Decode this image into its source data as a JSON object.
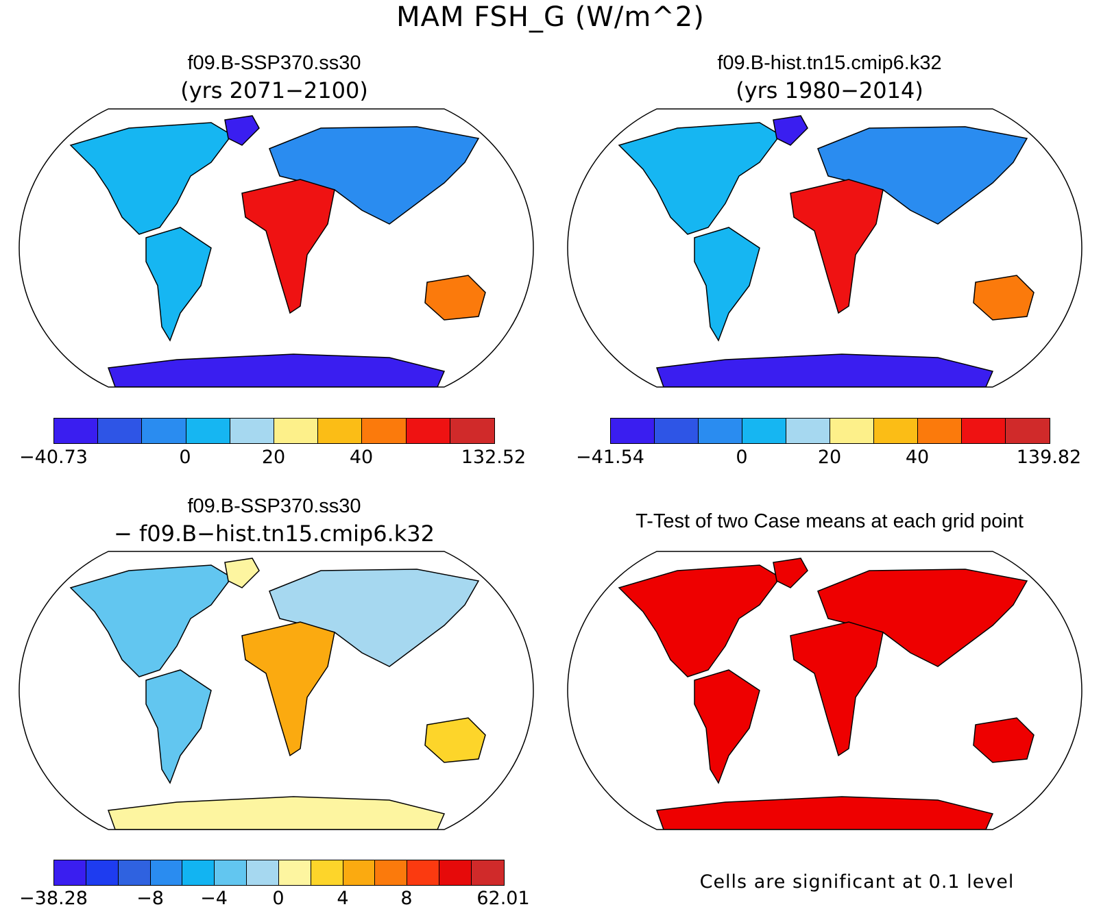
{
  "figure": {
    "title": "MAM FSH_G (W/m^2)"
  },
  "panels": [
    {
      "title": "f09.B-SSP370.ss30",
      "subtitle": "(yrs 2071−2100)",
      "colorbar": {
        "colors": [
          "#3a1ef0",
          "#2e55e6",
          "#2a8cf0",
          "#16b6f2",
          "#a6d8f0",
          "#fdf08a",
          "#fbbd16",
          "#fb7a0c",
          "#ef1212",
          "#d02a2a"
        ],
        "tick_labels": [
          "−40.73",
          "0",
          "20",
          "40",
          "132.52"
        ]
      }
    },
    {
      "title": "f09.B-hist.tn15.cmip6.k32",
      "subtitle": "(yrs 1980−2014)",
      "colorbar": {
        "colors": [
          "#3a1ef0",
          "#2e55e6",
          "#2a8cf0",
          "#16b6f2",
          "#a6d8f0",
          "#fdf08a",
          "#fbbd16",
          "#fb7a0c",
          "#ef1212",
          "#d02a2a"
        ],
        "tick_labels": [
          "−41.54",
          "0",
          "20",
          "40",
          "139.82"
        ]
      }
    },
    {
      "title": "f09.B-SSP370.ss30",
      "subtitle": "− f09.B−hist.tn15.cmip6.k32",
      "colorbar": {
        "colors": [
          "#3a1ef0",
          "#1e3cf0",
          "#2f62e0",
          "#2a8cf0",
          "#12b4f2",
          "#62c6f0",
          "#a6d8f0",
          "#fdf5a0",
          "#fdd52a",
          "#fbaa10",
          "#fb7a0c",
          "#fb3a10",
          "#e60a0a",
          "#d02a2a"
        ],
        "tick_labels": [
          "−38.28",
          "−8",
          "−4",
          "0",
          "4",
          "8",
          "62.01"
        ]
      }
    },
    {
      "title": "T-Test of two Case means at each grid point",
      "note": "Cells are significant at 0.1 level",
      "significance_color": "#ee0000"
    }
  ]
}
